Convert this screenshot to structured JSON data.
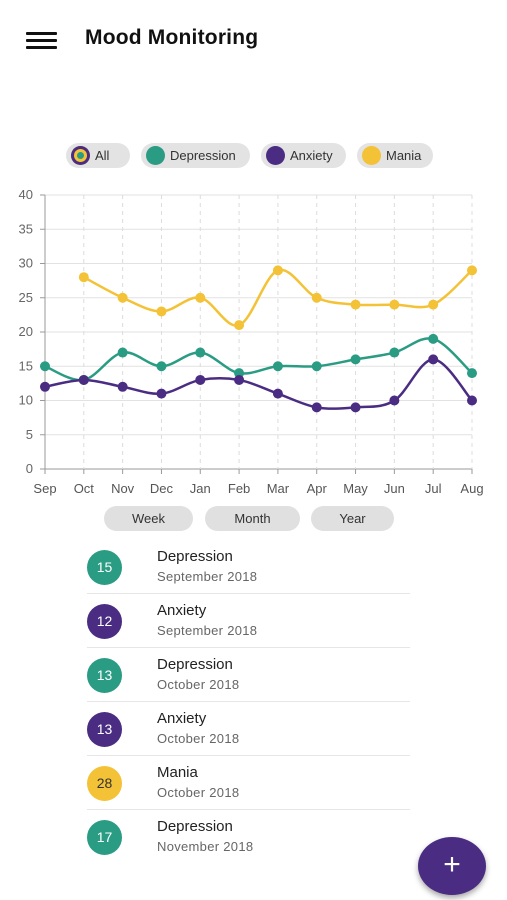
{
  "app": {
    "title": "Mood Monitoring"
  },
  "icons": {
    "menu": "hamburger-menu-icon",
    "add": "plus-icon"
  },
  "colors": {
    "depression": "#2a9c84",
    "anxiety": "#4a2d82",
    "mania": "#f4c237",
    "chip_bg": "#e3e3e3"
  },
  "filters": [
    {
      "label": "All",
      "key": "all"
    },
    {
      "label": "Depression",
      "key": "depression"
    },
    {
      "label": "Anxiety",
      "key": "anxiety"
    },
    {
      "label": "Mania",
      "key": "mania"
    }
  ],
  "ranges": [
    {
      "label": "Week"
    },
    {
      "label": "Month"
    },
    {
      "label": "Year"
    }
  ],
  "chart_data": {
    "type": "line",
    "title": "",
    "xlabel": "",
    "ylabel": "",
    "ylim": [
      0,
      40
    ],
    "yticks": [
      0,
      5,
      10,
      15,
      20,
      25,
      30,
      35,
      40
    ],
    "grid": "dashed vertical, solid horizontal",
    "categories": [
      "Sep",
      "Oct",
      "Nov",
      "Dec",
      "Jan",
      "Feb",
      "Mar",
      "Apr",
      "May",
      "Jun",
      "Jul",
      "Aug"
    ],
    "series": [
      {
        "key": "mania",
        "color": "#f4c237",
        "values": [
          null,
          28,
          25,
          23,
          25,
          21,
          29,
          25,
          24,
          24,
          24,
          29
        ]
      },
      {
        "key": "depression",
        "color": "#2a9c84",
        "values": [
          15,
          13,
          17,
          15,
          17,
          14,
          15,
          15,
          16,
          17,
          19,
          14
        ]
      },
      {
        "key": "anxiety",
        "color": "#4a2d82",
        "values": [
          12,
          13,
          12,
          11,
          13,
          13,
          11,
          9,
          9,
          10,
          16,
          10
        ]
      }
    ]
  },
  "entries": [
    {
      "value": "15",
      "type": "Depression",
      "date": "September 2018",
      "color": "#2a9c84"
    },
    {
      "value": "12",
      "type": "Anxiety",
      "date": "September 2018",
      "color": "#4a2d82"
    },
    {
      "value": "13",
      "type": "Depression",
      "date": "October 2018",
      "color": "#2a9c84"
    },
    {
      "value": "13",
      "type": "Anxiety",
      "date": "October 2018",
      "color": "#4a2d82"
    },
    {
      "value": "28",
      "type": "Mania",
      "date": "October 2018",
      "color": "#f4c237"
    },
    {
      "value": "17",
      "type": "Depression",
      "date": "November 2018",
      "color": "#2a9c84"
    }
  ],
  "fab": {
    "label": "+"
  }
}
